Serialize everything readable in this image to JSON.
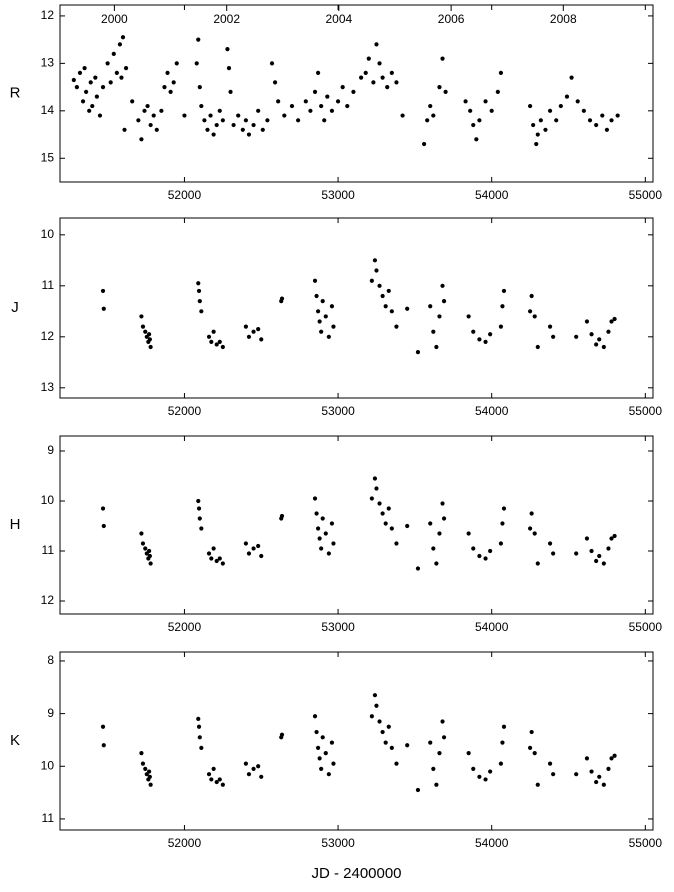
{
  "chart_data": [
    {
      "type": "scatter",
      "y_label": "R",
      "color": "#000000",
      "y_inverted": true,
      "xlim": [
        51190,
        55050
      ],
      "ylim": [
        11.77,
        15.5
      ],
      "xticks": [
        52000,
        53000,
        54000,
        55000
      ],
      "yticks": [
        12,
        13,
        14,
        15
      ],
      "x2ticks": [
        {
          "value": 51544,
          "label": "2000"
        },
        {
          "value": 52275,
          "label": "2002"
        },
        {
          "value": 53005,
          "label": "2004"
        },
        {
          "value": 53736,
          "label": "2006"
        },
        {
          "value": 54466,
          "label": "2008"
        }
      ],
      "x": [
        51280,
        51300,
        51320,
        51340,
        51350,
        51360,
        51380,
        51390,
        51400,
        51420,
        51430,
        51450,
        51470,
        51500,
        51520,
        51540,
        51560,
        51580,
        51590,
        51600,
        51610,
        51620,
        51660,
        51700,
        51720,
        51740,
        51760,
        51780,
        51800,
        51820,
        51850,
        51870,
        51890,
        51910,
        51930,
        51950,
        52000,
        52080,
        52090,
        52100,
        52110,
        52130,
        52150,
        52170,
        52190,
        52210,
        52230,
        52250,
        52280,
        52290,
        52300,
        52320,
        52350,
        52380,
        52400,
        52420,
        52450,
        52480,
        52510,
        52540,
        52570,
        52590,
        52610,
        52650,
        52700,
        52740,
        52790,
        52820,
        52850,
        52870,
        52890,
        52910,
        52930,
        52960,
        53000,
        53030,
        53060,
        53100,
        53150,
        53180,
        53200,
        53230,
        53250,
        53270,
        53290,
        53320,
        53350,
        53380,
        53420,
        53560,
        53580,
        53600,
        53620,
        53660,
        53680,
        53700,
        53830,
        53860,
        53880,
        53900,
        53920,
        53960,
        54000,
        54040,
        54060,
        54250,
        54270,
        54290,
        54300,
        54320,
        54350,
        54380,
        54420,
        54450,
        54490,
        54520,
        54560,
        54600,
        54640,
        54680,
        54720,
        54750,
        54780,
        54820
      ],
      "values": [
        13.35,
        13.5,
        13.2,
        13.8,
        13.1,
        13.6,
        14.0,
        13.4,
        13.9,
        13.3,
        13.7,
        14.1,
        13.5,
        13.0,
        13.4,
        12.8,
        13.2,
        12.6,
        13.3,
        12.45,
        14.4,
        13.1,
        13.8,
        14.2,
        14.6,
        14.0,
        13.9,
        14.3,
        14.1,
        14.4,
        14.0,
        13.5,
        13.2,
        13.6,
        13.4,
        13.0,
        14.1,
        13.0,
        12.5,
        13.5,
        13.9,
        14.2,
        14.4,
        14.1,
        14.5,
        14.3,
        14.0,
        14.2,
        12.7,
        13.1,
        13.6,
        14.3,
        14.1,
        14.4,
        14.2,
        14.5,
        14.3,
        14.0,
        14.4,
        14.2,
        13.0,
        13.4,
        13.8,
        14.1,
        13.9,
        14.2,
        13.8,
        14.0,
        13.6,
        13.2,
        13.9,
        14.2,
        13.7,
        14.0,
        13.8,
        13.5,
        13.9,
        13.6,
        13.3,
        13.2,
        12.9,
        13.4,
        12.6,
        13.0,
        13.3,
        13.5,
        13.2,
        13.4,
        14.1,
        14.7,
        14.2,
        13.9,
        14.1,
        13.5,
        12.9,
        13.6,
        13.8,
        14.0,
        14.3,
        14.6,
        14.2,
        13.8,
        14.0,
        13.6,
        13.2,
        13.9,
        14.3,
        14.7,
        14.5,
        14.2,
        14.4,
        14.0,
        14.2,
        13.9,
        13.7,
        13.3,
        13.8,
        14.0,
        14.2,
        14.3,
        14.1,
        14.4,
        14.2,
        14.1
      ]
    },
    {
      "type": "scatter",
      "y_label": "J",
      "color": "#000000",
      "y_inverted": true,
      "xlim": [
        51190,
        55050
      ],
      "ylim": [
        9.67,
        13.2
      ],
      "xticks": [
        52000,
        53000,
        54000,
        55000
      ],
      "yticks": [
        10,
        11,
        12,
        13
      ],
      "x": [
        51470,
        51475,
        51720,
        51730,
        51745,
        51755,
        51765,
        51770,
        51780,
        51775,
        52090,
        52095,
        52100,
        52110,
        52160,
        52175,
        52190,
        52210,
        52230,
        52250,
        52400,
        52420,
        52450,
        52480,
        52500,
        52630,
        52635,
        52850,
        52860,
        52870,
        52880,
        52890,
        52900,
        52920,
        52940,
        52960,
        52970,
        53220,
        53240,
        53250,
        53270,
        53290,
        53310,
        53330,
        53350,
        53380,
        53450,
        53520,
        53600,
        53620,
        53640,
        53660,
        53680,
        53690,
        53850,
        53880,
        53920,
        53960,
        53990,
        54060,
        54070,
        54080,
        54250,
        54260,
        54280,
        54300,
        54380,
        54400,
        54550,
        54620,
        54650,
        54680,
        54700,
        54730,
        54760,
        54780,
        54800
      ],
      "values": [
        11.1,
        11.45,
        11.6,
        11.8,
        11.9,
        12.0,
        12.1,
        11.95,
        12.2,
        12.05,
        10.95,
        11.1,
        11.3,
        11.5,
        12.0,
        12.1,
        11.9,
        12.15,
        12.1,
        12.2,
        11.8,
        12.0,
        11.9,
        11.85,
        12.05,
        11.3,
        11.25,
        10.9,
        11.2,
        11.5,
        11.7,
        11.9,
        11.3,
        11.6,
        12.0,
        11.4,
        11.8,
        10.9,
        10.5,
        10.7,
        11.0,
        11.2,
        11.4,
        11.1,
        11.5,
        11.8,
        11.45,
        12.3,
        11.4,
        11.9,
        12.2,
        11.6,
        11.0,
        11.3,
        11.6,
        11.9,
        12.05,
        12.1,
        11.95,
        11.8,
        11.4,
        11.1,
        11.5,
        11.2,
        11.6,
        12.2,
        11.8,
        12.0,
        12.0,
        11.7,
        11.95,
        12.15,
        12.05,
        12.2,
        11.9,
        11.7,
        11.65
      ]
    },
    {
      "type": "scatter",
      "y_label": "H",
      "color": "#000000",
      "y_inverted": true,
      "xlim": [
        51190,
        55050
      ],
      "ylim": [
        8.7,
        12.26
      ],
      "xticks": [
        52000,
        53000,
        54000,
        55000
      ],
      "yticks": [
        9,
        10,
        11,
        12
      ],
      "x": [
        51470,
        51475,
        51720,
        51730,
        51745,
        51755,
        51765,
        51770,
        51780,
        51775,
        52090,
        52095,
        52100,
        52110,
        52160,
        52175,
        52190,
        52210,
        52230,
        52250,
        52400,
        52420,
        52450,
        52480,
        52500,
        52630,
        52635,
        52850,
        52860,
        52870,
        52880,
        52890,
        52900,
        52920,
        52940,
        52960,
        52970,
        53220,
        53240,
        53250,
        53270,
        53290,
        53310,
        53330,
        53350,
        53380,
        53450,
        53520,
        53600,
        53620,
        53640,
        53660,
        53680,
        53690,
        53850,
        53880,
        53920,
        53960,
        53990,
        54060,
        54070,
        54080,
        54250,
        54260,
        54280,
        54300,
        54380,
        54400,
        54550,
        54620,
        54650,
        54680,
        54700,
        54730,
        54760,
        54780,
        54800
      ],
      "values": [
        10.15,
        10.5,
        10.65,
        10.85,
        10.95,
        11.05,
        11.15,
        11.0,
        11.25,
        11.1,
        10.0,
        10.15,
        10.35,
        10.55,
        11.05,
        11.15,
        10.95,
        11.2,
        11.15,
        11.25,
        10.85,
        11.05,
        10.95,
        10.9,
        11.1,
        10.35,
        10.3,
        9.95,
        10.25,
        10.55,
        10.75,
        10.95,
        10.35,
        10.65,
        11.05,
        10.45,
        10.85,
        9.95,
        9.55,
        9.75,
        10.05,
        10.25,
        10.45,
        10.15,
        10.55,
        10.85,
        10.5,
        11.35,
        10.45,
        10.95,
        11.25,
        10.65,
        10.05,
        10.35,
        10.65,
        10.95,
        11.1,
        11.15,
        11.0,
        10.85,
        10.45,
        10.15,
        10.55,
        10.25,
        10.65,
        11.25,
        10.85,
        11.05,
        11.05,
        10.75,
        11.0,
        11.2,
        11.1,
        11.25,
        10.95,
        10.75,
        10.7
      ]
    },
    {
      "type": "scatter",
      "y_label": "K",
      "x_label": "JD - 2400000",
      "color": "#000000",
      "y_inverted": true,
      "xlim": [
        51190,
        55050
      ],
      "ylim": [
        7.83,
        11.21
      ],
      "xticks": [
        52000,
        53000,
        54000,
        55000
      ],
      "yticks": [
        8,
        9,
        10,
        11
      ],
      "x": [
        51470,
        51475,
        51720,
        51730,
        51745,
        51755,
        51765,
        51770,
        51780,
        51775,
        52090,
        52095,
        52100,
        52110,
        52160,
        52175,
        52190,
        52210,
        52230,
        52250,
        52400,
        52420,
        52450,
        52480,
        52500,
        52630,
        52635,
        52850,
        52860,
        52870,
        52880,
        52890,
        52900,
        52920,
        52940,
        52960,
        52970,
        53220,
        53240,
        53250,
        53270,
        53290,
        53310,
        53330,
        53350,
        53380,
        53450,
        53520,
        53600,
        53620,
        53640,
        53660,
        53680,
        53690,
        53850,
        53880,
        53920,
        53960,
        53990,
        54060,
        54070,
        54080,
        54250,
        54260,
        54280,
        54300,
        54380,
        54400,
        54550,
        54620,
        54650,
        54680,
        54700,
        54730,
        54760,
        54780,
        54800
      ],
      "values": [
        9.25,
        9.6,
        9.75,
        9.95,
        10.05,
        10.15,
        10.25,
        10.1,
        10.35,
        10.2,
        9.1,
        9.25,
        9.45,
        9.65,
        10.15,
        10.25,
        10.05,
        10.3,
        10.25,
        10.35,
        9.95,
        10.15,
        10.05,
        10.0,
        10.2,
        9.45,
        9.4,
        9.05,
        9.35,
        9.65,
        9.85,
        10.05,
        9.45,
        9.75,
        10.15,
        9.55,
        9.95,
        9.05,
        8.65,
        8.85,
        9.15,
        9.35,
        9.55,
        9.25,
        9.65,
        9.95,
        9.6,
        10.45,
        9.55,
        10.05,
        10.35,
        9.75,
        9.15,
        9.45,
        9.75,
        10.05,
        10.2,
        10.25,
        10.1,
        9.95,
        9.55,
        9.25,
        9.65,
        9.35,
        9.75,
        10.35,
        9.95,
        10.15,
        10.15,
        9.85,
        10.1,
        10.3,
        10.2,
        10.35,
        10.05,
        9.85,
        9.8
      ]
    }
  ]
}
